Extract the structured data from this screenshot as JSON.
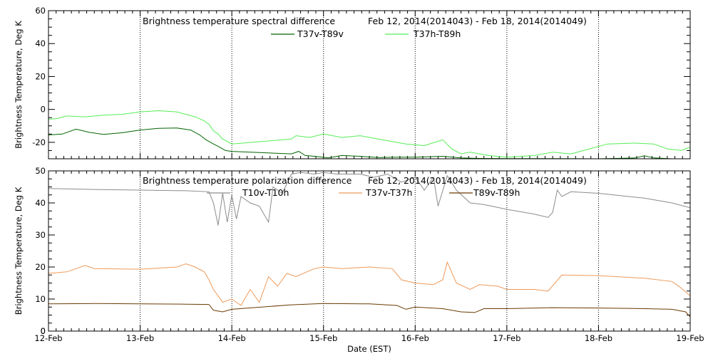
{
  "xaxis": {
    "label": "Date (EST)",
    "ticks": [
      "12-Feb",
      "13-Feb",
      "14-Feb",
      "15-Feb",
      "16-Feb",
      "17-Feb",
      "18-Feb",
      "19-Feb"
    ],
    "range_days": [
      12,
      19
    ]
  },
  "chart_data": [
    {
      "type": "line",
      "title": "Brightness temperature spectral difference",
      "subtitle": "Feb 12, 2014(2014043) - Feb 18, 2014(2014049)",
      "ylabel": "Brightness Temperature, Deg K",
      "ylim": [
        -30,
        60
      ],
      "yticks": [
        -20,
        0,
        20,
        40,
        60
      ],
      "grid": "vertical dotted lines at each day",
      "legend_position": "top-center",
      "series": [
        {
          "name": "T37v-T89v",
          "color": "#006400",
          "points": [
            [
              12.0,
              -15.5
            ],
            [
              12.15,
              -15
            ],
            [
              12.3,
              -12
            ],
            [
              12.45,
              -14
            ],
            [
              12.6,
              -15.2
            ],
            [
              12.8,
              -14.2
            ],
            [
              13.0,
              -12.5
            ],
            [
              13.2,
              -11.5
            ],
            [
              13.4,
              -11.3
            ],
            [
              13.55,
              -12.5
            ],
            [
              13.65,
              -15.5
            ],
            [
              13.72,
              -18.5
            ],
            [
              13.8,
              -21
            ],
            [
              13.87,
              -23
            ],
            [
              13.93,
              -25
            ],
            [
              14.0,
              -25.5
            ],
            [
              14.65,
              -27
            ],
            [
              14.73,
              -25.5
            ],
            [
              14.8,
              -28
            ],
            [
              14.9,
              -28.5
            ],
            [
              15.05,
              -29.5
            ],
            [
              15.2,
              -28
            ],
            [
              15.4,
              -28.5
            ],
            [
              15.6,
              -29.2
            ],
            [
              15.8,
              -29
            ],
            [
              16.0,
              -29
            ],
            [
              16.3,
              -28.5
            ],
            [
              16.5,
              -29.5
            ],
            [
              16.7,
              -29.8
            ],
            [
              17.0,
              -29.9
            ],
            [
              17.5,
              -29.9
            ],
            [
              18.0,
              -30
            ],
            [
              18.4,
              -29.5
            ],
            [
              18.5,
              -28.2
            ],
            [
              18.6,
              -29.5
            ],
            [
              18.8,
              -30
            ]
          ]
        },
        {
          "name": "T37h-T89h",
          "color": "#55ee55",
          "points": [
            [
              12.0,
              -6
            ],
            [
              12.1,
              -5.5
            ],
            [
              12.2,
              -4
            ],
            [
              12.4,
              -4.5
            ],
            [
              12.6,
              -3.5
            ],
            [
              12.8,
              -3
            ],
            [
              13.0,
              -1.5
            ],
            [
              13.2,
              -0.8
            ],
            [
              13.4,
              -1.5
            ],
            [
              13.5,
              -3
            ],
            [
              13.6,
              -4.5
            ],
            [
              13.7,
              -7
            ],
            [
              13.75,
              -9
            ],
            [
              13.8,
              -13
            ],
            [
              13.85,
              -15
            ],
            [
              13.9,
              -18
            ],
            [
              14.0,
              -21
            ],
            [
              14.65,
              -18
            ],
            [
              14.7,
              -16
            ],
            [
              14.85,
              -17
            ],
            [
              15.0,
              -15
            ],
            [
              15.2,
              -17
            ],
            [
              15.4,
              -16
            ],
            [
              15.55,
              -17.5
            ],
            [
              15.7,
              -19
            ],
            [
              15.9,
              -21
            ],
            [
              16.1,
              -22
            ],
            [
              16.3,
              -18.5
            ],
            [
              16.4,
              -24
            ],
            [
              16.5,
              -27
            ],
            [
              16.6,
              -26
            ],
            [
              16.8,
              -28
            ],
            [
              17.0,
              -29
            ],
            [
              17.3,
              -28
            ],
            [
              17.5,
              -26
            ],
            [
              17.7,
              -27
            ],
            [
              17.9,
              -24
            ],
            [
              18.1,
              -21
            ],
            [
              18.4,
              -20.5
            ],
            [
              18.6,
              -21
            ],
            [
              18.75,
              -24
            ],
            [
              18.9,
              -25
            ],
            [
              19.0,
              -23
            ]
          ]
        }
      ]
    },
    {
      "type": "line",
      "title": "Brightness temperature polarization difference",
      "subtitle": "Feb 12, 2014(2014043) - Feb 18, 2014(2014049)",
      "ylabel": "Brightness Temperature, Deg K",
      "ylim": [
        0,
        50
      ],
      "yticks": [
        0,
        10,
        20,
        30,
        40,
        50
      ],
      "grid": "vertical dotted lines at each day",
      "legend_position": "top-center",
      "series": [
        {
          "name": "T10v-T10h",
          "color": "#8c8c8c",
          "points": [
            [
              12.0,
              44.5
            ],
            [
              12.5,
              44.2
            ],
            [
              13.0,
              44
            ],
            [
              13.5,
              43.8
            ],
            [
              13.75,
              43.5
            ],
            [
              13.8,
              40
            ],
            [
              13.85,
              33
            ],
            [
              13.9,
              43
            ],
            [
              13.95,
              34
            ],
            [
              14.0,
              42.5
            ],
            [
              14.05,
              35
            ],
            [
              14.1,
              42
            ],
            [
              14.2,
              40
            ],
            [
              14.3,
              39
            ],
            [
              14.4,
              34
            ],
            [
              14.45,
              45
            ],
            [
              14.55,
              43
            ],
            [
              14.65,
              49
            ],
            [
              14.75,
              49.5
            ],
            [
              14.9,
              49
            ],
            [
              15.0,
              49.5
            ],
            [
              15.15,
              49
            ],
            [
              15.4,
              49
            ],
            [
              15.55,
              48
            ],
            [
              15.7,
              49
            ],
            [
              15.85,
              46.5
            ],
            [
              16.0,
              48
            ],
            [
              16.1,
              44
            ],
            [
              16.2,
              48
            ],
            [
              16.25,
              39
            ],
            [
              16.35,
              48.5
            ],
            [
              16.45,
              44
            ],
            [
              16.6,
              40
            ],
            [
              16.75,
              39.5
            ],
            [
              17.0,
              38
            ],
            [
              17.3,
              36.5
            ],
            [
              17.45,
              35.5
            ],
            [
              17.5,
              37
            ],
            [
              17.55,
              44
            ],
            [
              17.6,
              42
            ],
            [
              17.7,
              43.5
            ],
            [
              18.0,
              43
            ],
            [
              18.5,
              41.5
            ],
            [
              18.8,
              40
            ],
            [
              19.0,
              38.5
            ]
          ]
        },
        {
          "name": "T37v-T37h",
          "color": "#ee9a5a",
          "points": [
            [
              12.0,
              18
            ],
            [
              12.2,
              18.5
            ],
            [
              12.4,
              20.5
            ],
            [
              12.5,
              19.5
            ],
            [
              13.0,
              19.3
            ],
            [
              13.4,
              20
            ],
            [
              13.5,
              21
            ],
            [
              13.6,
              20
            ],
            [
              13.7,
              18.5
            ],
            [
              13.75,
              16
            ],
            [
              13.8,
              13
            ],
            [
              13.9,
              9
            ],
            [
              14.0,
              10
            ],
            [
              14.1,
              8
            ],
            [
              14.2,
              13
            ],
            [
              14.3,
              9
            ],
            [
              14.4,
              17
            ],
            [
              14.5,
              14
            ],
            [
              14.6,
              18
            ],
            [
              14.7,
              17
            ],
            [
              14.9,
              19.5
            ],
            [
              15.0,
              20
            ],
            [
              15.2,
              19.5
            ],
            [
              15.5,
              20
            ],
            [
              15.75,
              19.5
            ],
            [
              15.85,
              16
            ],
            [
              16.0,
              15
            ],
            [
              16.2,
              14.5
            ],
            [
              16.3,
              16
            ],
            [
              16.35,
              21.5
            ],
            [
              16.45,
              15
            ],
            [
              16.6,
              13
            ],
            [
              16.7,
              14.5
            ],
            [
              16.9,
              14
            ],
            [
              17.0,
              13
            ],
            [
              17.3,
              13
            ],
            [
              17.45,
              12.5
            ],
            [
              17.6,
              17.5
            ],
            [
              18.0,
              17.3
            ],
            [
              18.5,
              16.5
            ],
            [
              18.8,
              15.5
            ],
            [
              18.9,
              13.5
            ],
            [
              19.0,
              11
            ]
          ]
        },
        {
          "name": "T89v-T89h",
          "color": "#6b3a00",
          "points": [
            [
              12.0,
              8.5
            ],
            [
              12.5,
              8.6
            ],
            [
              13.0,
              8.5
            ],
            [
              13.5,
              8.4
            ],
            [
              13.75,
              8.3
            ],
            [
              13.8,
              6.5
            ],
            [
              13.9,
              6
            ],
            [
              14.0,
              6.8
            ],
            [
              14.65,
              8.2
            ],
            [
              15.0,
              8.6
            ],
            [
              15.5,
              8.5
            ],
            [
              15.8,
              8
            ],
            [
              15.9,
              6.8
            ],
            [
              16.0,
              7.5
            ],
            [
              16.3,
              7
            ],
            [
              16.5,
              6
            ],
            [
              16.65,
              5.8
            ],
            [
              16.75,
              7
            ],
            [
              17.0,
              7
            ],
            [
              17.5,
              7.3
            ],
            [
              18.0,
              7.2
            ],
            [
              18.5,
              7
            ],
            [
              18.8,
              6.8
            ],
            [
              18.95,
              6
            ],
            [
              19.0,
              4.5
            ]
          ]
        }
      ]
    }
  ]
}
